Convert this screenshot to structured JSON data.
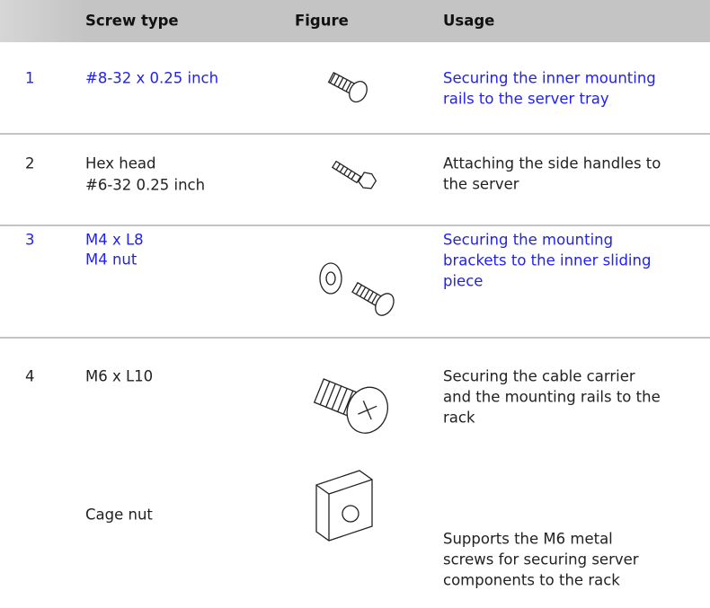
{
  "table": {
    "header": [
      "Screw type",
      "Figure",
      "Usage"
    ],
    "rows": [
      {
        "number": "1",
        "type": [
          "#8-32 x 0.25 inch"
        ],
        "usage": [
          "Securing the inner mounting",
          "rails to the server tray"
        ],
        "color": "#2222ee"
      },
      {
        "number": "2",
        "type": [
          "Hex head",
          "#6-32 0.25 inch"
        ],
        "usage": [
          "Attaching the side handles to",
          "the server"
        ],
        "color": "#222222"
      },
      {
        "number": "3",
        "type": [
          "M4 x L8",
          "M4 nut"
        ],
        "usage": [
          "Securing the mounting",
          "brackets to the inner sliding",
          "piece"
        ],
        "color": "#2222ee"
      },
      {
        "number": "4",
        "type": [
          "M6 x L10"
        ],
        "usage": [
          "Securing the cable carrier",
          "and the mounting rails to the",
          "rack"
        ],
        "color": "#222222"
      },
      {
        "type": [
          "Cage nut"
        ],
        "usage": [
          "Supports the M6 metal",
          "screws for securing server",
          "components to the rack"
        ],
        "color": "#222222"
      }
    ]
  }
}
